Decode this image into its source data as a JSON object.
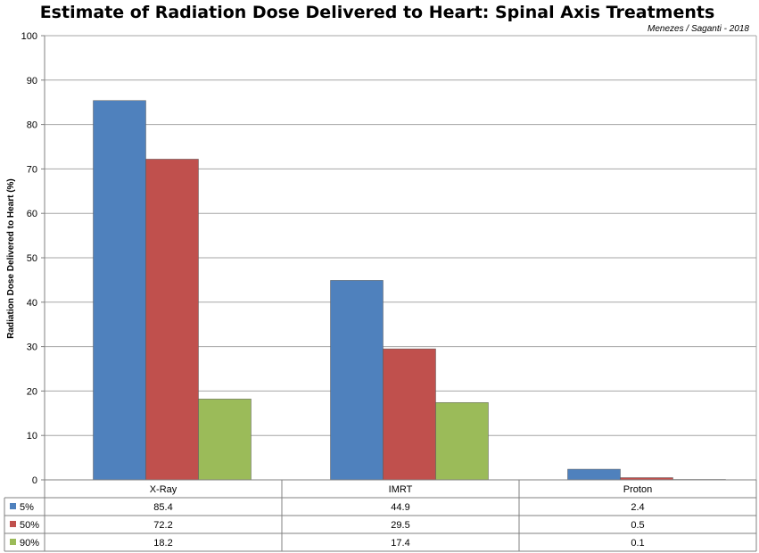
{
  "chart_data": {
    "type": "bar",
    "title": "Estimate of Radiation Dose Delivered to Heart: Spinal Axis Treatments",
    "credit": "Menezes / Saganti  - 2018",
    "ylabel": "Radiation Dose Delivered to Heart (%)",
    "xlabel": "",
    "ylim": [
      0,
      100
    ],
    "yticks": [
      0,
      10,
      20,
      30,
      40,
      50,
      60,
      70,
      80,
      90,
      100
    ],
    "grid": true,
    "legend": "data-table-left",
    "categories": [
      "X-Ray",
      "IMRT",
      "Proton"
    ],
    "series": [
      {
        "name": "5%",
        "color": "#4F81BD",
        "values": [
          85.4,
          44.9,
          2.4
        ],
        "labels": [
          "85.4",
          "44.9",
          "2.4"
        ]
      },
      {
        "name": "50%",
        "color": "#C0504D",
        "values": [
          72.2,
          29.5,
          0.5
        ],
        "labels": [
          "72.2",
          "29.5",
          "0.5"
        ]
      },
      {
        "name": "90%",
        "color": "#9BBB59",
        "values": [
          18.2,
          17.4,
          0.1
        ],
        "labels": [
          "18.2",
          "17.4",
          "0.1"
        ]
      }
    ]
  }
}
